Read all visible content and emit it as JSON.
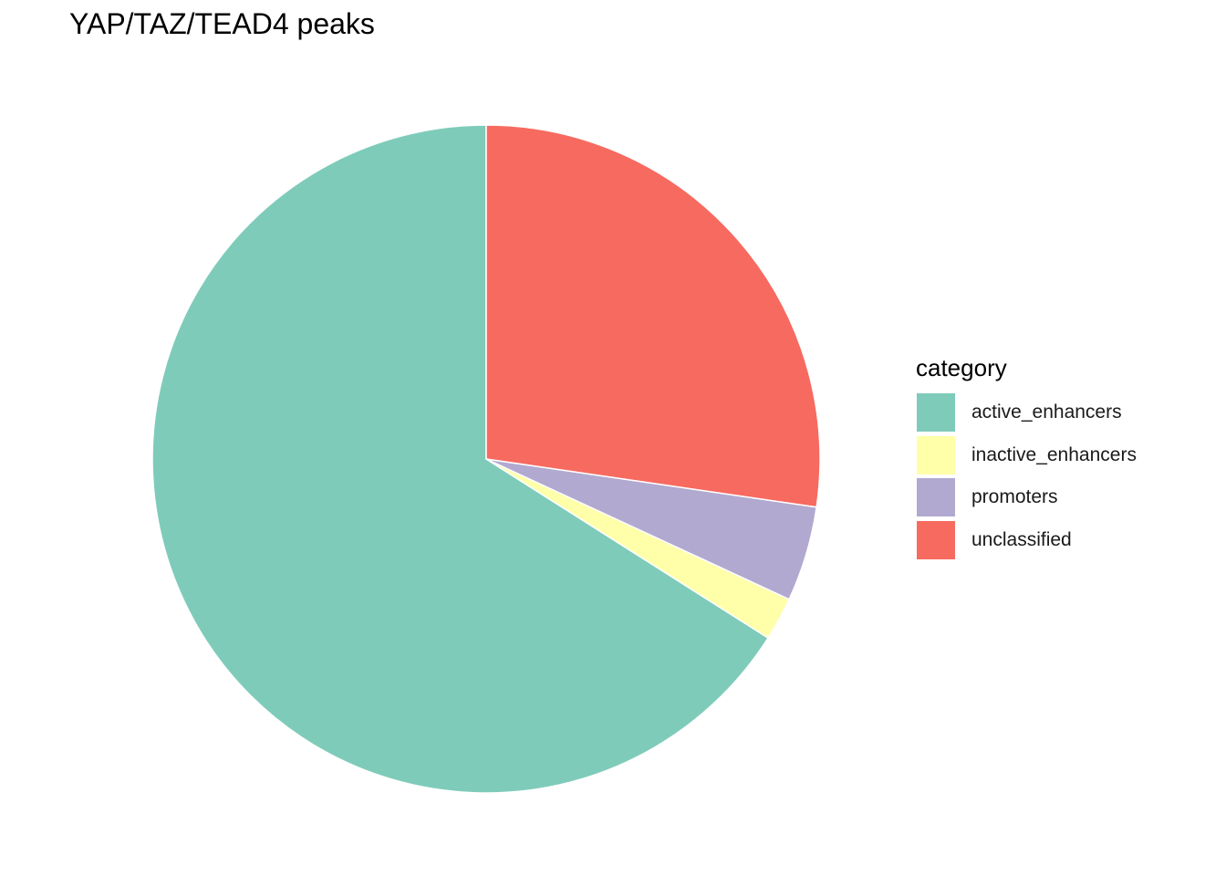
{
  "chart_data": {
    "type": "pie",
    "title": "YAP/TAZ/TEAD4 peaks",
    "legend_title": "category",
    "legend_position": "right",
    "start": "top",
    "direction": "counterclockwise",
    "categories": [
      "active_enhancers",
      "inactive_enhancers",
      "promoters",
      "unclassified"
    ],
    "values": [
      0.66,
      0.021,
      0.046,
      0.273
    ],
    "colors": [
      "#7FCBBA",
      "#FFFFA9",
      "#B1A9CF",
      "#F76A60"
    ]
  }
}
